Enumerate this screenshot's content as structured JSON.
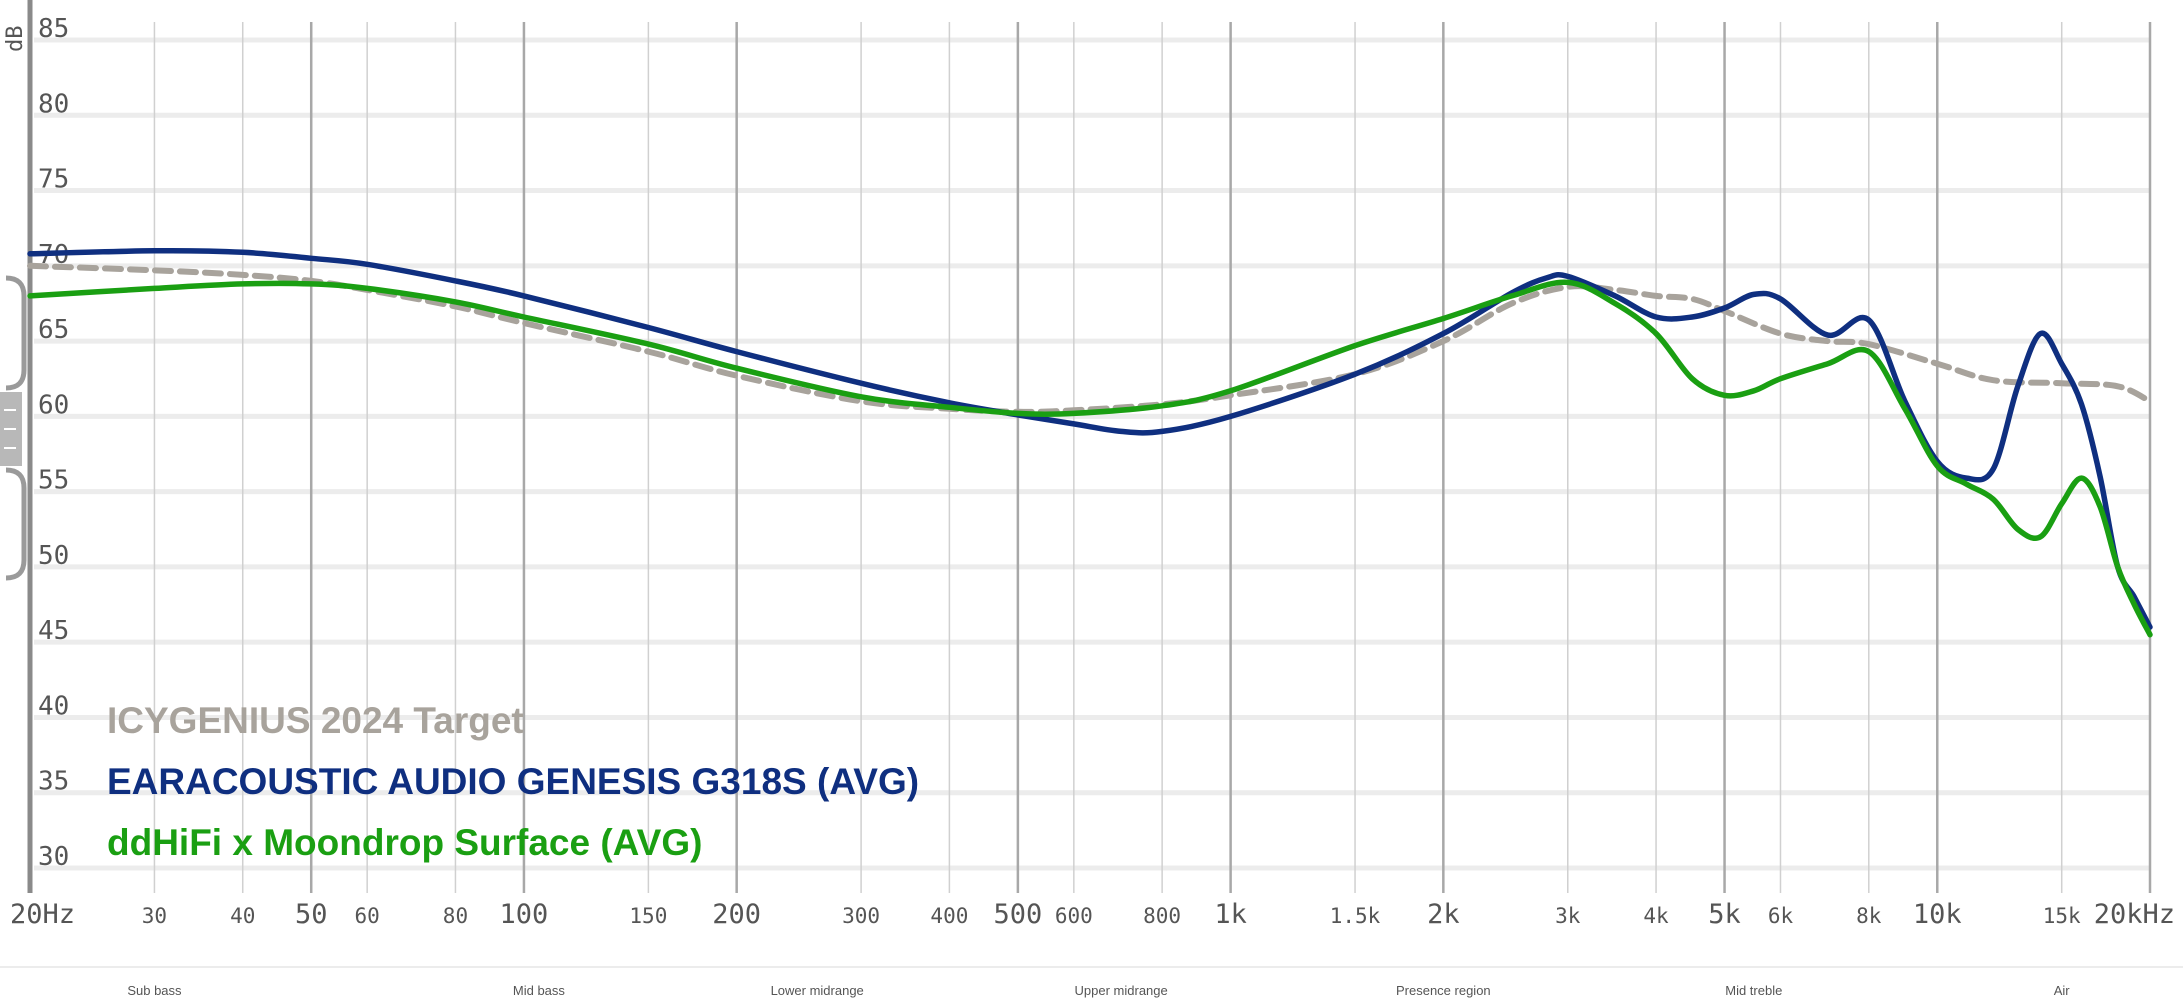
{
  "chart_data": {
    "type": "line",
    "y_axis": {
      "label": "dB",
      "ticks": [
        85,
        80,
        75,
        70,
        65,
        60,
        55,
        50,
        45,
        40,
        35,
        30
      ],
      "ylim": [
        30,
        85
      ]
    },
    "x_axis": {
      "scale": "log",
      "xlim": [
        20,
        20000
      ],
      "ticks": [
        {
          "label": "20Hz",
          "value": 20,
          "major": true
        },
        {
          "label": "30",
          "value": 30
        },
        {
          "label": "40",
          "value": 40
        },
        {
          "label": "50",
          "value": 50,
          "major": true
        },
        {
          "label": "60",
          "value": 60
        },
        {
          "label": "80",
          "value": 80
        },
        {
          "label": "100",
          "value": 100,
          "major": true
        },
        {
          "label": "150",
          "value": 150
        },
        {
          "label": "200",
          "value": 200,
          "major": true
        },
        {
          "label": "300",
          "value": 300
        },
        {
          "label": "400",
          "value": 400
        },
        {
          "label": "500",
          "value": 500,
          "major": true
        },
        {
          "label": "600",
          "value": 600
        },
        {
          "label": "800",
          "value": 800
        },
        {
          "label": "1k",
          "value": 1000,
          "major": true
        },
        {
          "label": "1.5k",
          "value": 1500
        },
        {
          "label": "2k",
          "value": 2000,
          "major": true
        },
        {
          "label": "3k",
          "value": 3000
        },
        {
          "label": "4k",
          "value": 4000
        },
        {
          "label": "5k",
          "value": 5000,
          "major": true
        },
        {
          "label": "6k",
          "value": 6000
        },
        {
          "label": "8k",
          "value": 8000
        },
        {
          "label": "10k",
          "value": 10000,
          "major": true
        },
        {
          "label": "15k",
          "value": 15000
        },
        {
          "label": "20kHz",
          "value": 20000,
          "major": true
        }
      ]
    },
    "regions": [
      {
        "label": "Sub bass",
        "at": 30
      },
      {
        "label": "Mid bass",
        "at": 105
      },
      {
        "label": "Lower midrange",
        "at": 260
      },
      {
        "label": "Upper midrange",
        "at": 700
      },
      {
        "label": "Presence region",
        "at": 2000
      },
      {
        "label": "Mid treble",
        "at": 5500
      },
      {
        "label": "Air",
        "at": 15000
      }
    ],
    "series": [
      {
        "name": "ICYGENIUS 2024 Target",
        "color": "#a8a39c",
        "dashed": true,
        "points": [
          [
            20,
            70.0
          ],
          [
            30,
            69.7
          ],
          [
            40,
            69.4
          ],
          [
            50,
            69.0
          ],
          [
            60,
            68.4
          ],
          [
            80,
            67.3
          ],
          [
            100,
            66.2
          ],
          [
            150,
            64.3
          ],
          [
            200,
            62.7
          ],
          [
            300,
            61.0
          ],
          [
            400,
            60.5
          ],
          [
            500,
            60.3
          ],
          [
            600,
            60.4
          ],
          [
            800,
            60.8
          ],
          [
            1000,
            61.4
          ],
          [
            1500,
            62.8
          ],
          [
            2000,
            65.0
          ],
          [
            2500,
            67.5
          ],
          [
            3000,
            68.6
          ],
          [
            3500,
            68.4
          ],
          [
            4000,
            68.0
          ],
          [
            4500,
            67.8
          ],
          [
            5000,
            67.0
          ],
          [
            6000,
            65.5
          ],
          [
            7000,
            65.0
          ],
          [
            8000,
            64.8
          ],
          [
            10000,
            63.5
          ],
          [
            12000,
            62.4
          ],
          [
            15000,
            62.2
          ],
          [
            18000,
            62.0
          ],
          [
            20000,
            61.0
          ]
        ]
      },
      {
        "name": "EARACOUSTIC AUDIO GENESIS G318S (AVG)",
        "color": "#0f2f80",
        "dashed": false,
        "points": [
          [
            20,
            70.8
          ],
          [
            30,
            71.0
          ],
          [
            40,
            70.9
          ],
          [
            50,
            70.5
          ],
          [
            60,
            70.1
          ],
          [
            80,
            69.0
          ],
          [
            100,
            68.0
          ],
          [
            150,
            65.9
          ],
          [
            200,
            64.3
          ],
          [
            300,
            62.2
          ],
          [
            400,
            60.9
          ],
          [
            500,
            60.1
          ],
          [
            600,
            59.5
          ],
          [
            700,
            59.0
          ],
          [
            800,
            59.0
          ],
          [
            1000,
            60.0
          ],
          [
            1500,
            62.8
          ],
          [
            2000,
            65.5
          ],
          [
            2500,
            68.2
          ],
          [
            2800,
            69.2
          ],
          [
            3000,
            69.3
          ],
          [
            3500,
            68.0
          ],
          [
            4000,
            66.6
          ],
          [
            4500,
            66.6
          ],
          [
            5000,
            67.2
          ],
          [
            5500,
            68.1
          ],
          [
            6000,
            67.8
          ],
          [
            7000,
            65.4
          ],
          [
            8000,
            66.4
          ],
          [
            9000,
            61.0
          ],
          [
            10000,
            57.0
          ],
          [
            11000,
            55.9
          ],
          [
            12000,
            56.5
          ],
          [
            13000,
            62.0
          ],
          [
            14000,
            65.5
          ],
          [
            15000,
            63.5
          ],
          [
            16000,
            60.8
          ],
          [
            17000,
            56.0
          ],
          [
            18000,
            50.0
          ],
          [
            19000,
            48.0
          ],
          [
            20000,
            46.0
          ]
        ]
      },
      {
        "name": "ddHiFi x Moondrop Surface (AVG)",
        "color": "#1a9f12",
        "dashed": false,
        "points": [
          [
            20,
            68.0
          ],
          [
            30,
            68.5
          ],
          [
            40,
            68.8
          ],
          [
            50,
            68.8
          ],
          [
            60,
            68.5
          ],
          [
            80,
            67.6
          ],
          [
            100,
            66.6
          ],
          [
            150,
            64.8
          ],
          [
            200,
            63.2
          ],
          [
            300,
            61.3
          ],
          [
            400,
            60.6
          ],
          [
            500,
            60.2
          ],
          [
            600,
            60.2
          ],
          [
            800,
            60.7
          ],
          [
            1000,
            61.7
          ],
          [
            1500,
            64.7
          ],
          [
            2000,
            66.5
          ],
          [
            2500,
            68.0
          ],
          [
            3000,
            68.9
          ],
          [
            3500,
            67.5
          ],
          [
            4000,
            65.5
          ],
          [
            4500,
            62.5
          ],
          [
            5000,
            61.4
          ],
          [
            5500,
            61.7
          ],
          [
            6000,
            62.5
          ],
          [
            7000,
            63.5
          ],
          [
            8000,
            64.3
          ],
          [
            9000,
            60.5
          ],
          [
            10000,
            56.7
          ],
          [
            11000,
            55.5
          ],
          [
            12000,
            54.5
          ],
          [
            13000,
            52.5
          ],
          [
            14000,
            52.0
          ],
          [
            15000,
            54.2
          ],
          [
            16000,
            55.9
          ],
          [
            17000,
            54.0
          ],
          [
            18000,
            50.0
          ],
          [
            19000,
            47.5
          ],
          [
            20000,
            45.5
          ]
        ]
      }
    ]
  }
}
